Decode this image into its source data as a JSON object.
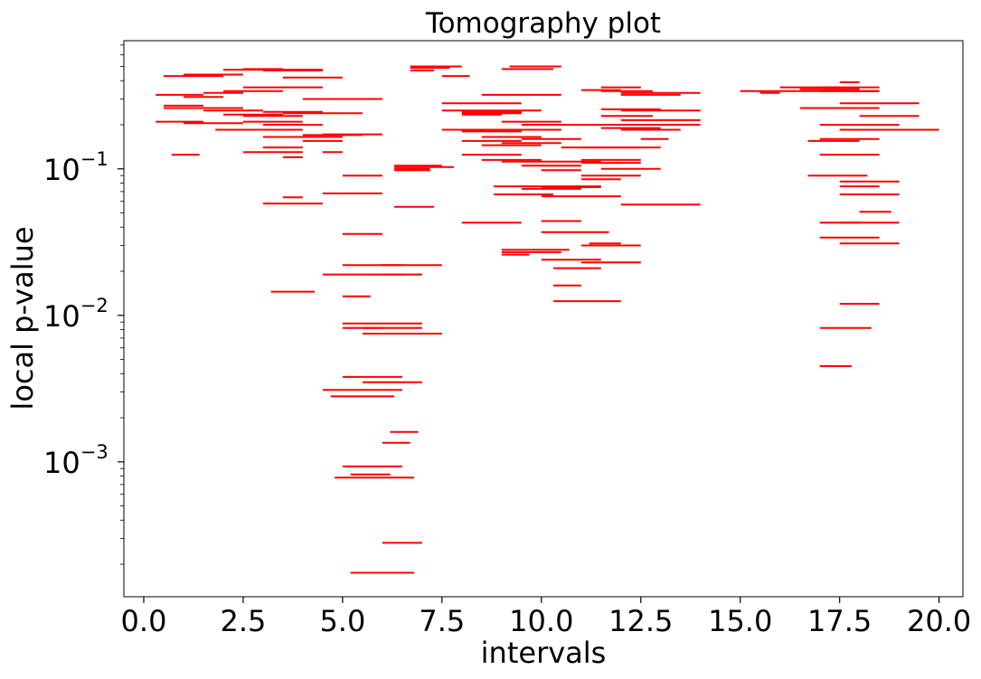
{
  "chart_data": {
    "type": "interval",
    "title": "Tomography plot",
    "xlabel": "intervals",
    "ylabel": "local p-value",
    "xscale": "linear",
    "yscale": "log",
    "xlim": [
      -0.5,
      20.6
    ],
    "ylim": [
      0.00012,
      0.75
    ],
    "grid": false,
    "color": "#ff0000",
    "xticks": [
      0.0,
      2.5,
      5.0,
      7.5,
      10.0,
      12.5,
      15.0,
      17.5,
      20.0
    ],
    "xtick_labels": [
      "0.0",
      "2.5",
      "5.0",
      "7.5",
      "10.0",
      "12.5",
      "15.0",
      "17.5",
      "20.0"
    ],
    "yticks": [
      {
        "value": 0.001,
        "base": "10",
        "exp": "−3"
      },
      {
        "value": 0.01,
        "base": "10",
        "exp": "−2"
      },
      {
        "value": 0.1,
        "base": "10",
        "exp": "−1"
      }
    ],
    "segments": [
      [
        0.5,
        2.0,
        0.43
      ],
      [
        1.0,
        2.5,
        0.44
      ],
      [
        2.0,
        4.5,
        0.475
      ],
      [
        2.5,
        3.5,
        0.48
      ],
      [
        3.0,
        4.5,
        0.47
      ],
      [
        0.3,
        1.5,
        0.32
      ],
      [
        1.0,
        2.0,
        0.31
      ],
      [
        1.5,
        2.5,
        0.33
      ],
      [
        2.0,
        3.5,
        0.34
      ],
      [
        2.5,
        4.5,
        0.36
      ],
      [
        3.5,
        5.0,
        0.42
      ],
      [
        0.5,
        1.5,
        0.27
      ],
      [
        0.5,
        2.5,
        0.26
      ],
      [
        1.5,
        3.0,
        0.25
      ],
      [
        2.0,
        3.5,
        0.235
      ],
      [
        2.5,
        4.0,
        0.23
      ],
      [
        3.0,
        4.5,
        0.245
      ],
      [
        3.5,
        5.5,
        0.24
      ],
      [
        4.0,
        6.0,
        0.3
      ],
      [
        0.3,
        1.5,
        0.21
      ],
      [
        1.0,
        2.5,
        0.205
      ],
      [
        2.5,
        4.0,
        0.21
      ],
      [
        3.0,
        4.5,
        0.2
      ],
      [
        1.8,
        4.0,
        0.185
      ],
      [
        3.0,
        5.0,
        0.165
      ],
      [
        4.0,
        5.5,
        0.17
      ],
      [
        4.5,
        6.0,
        0.172
      ],
      [
        4.0,
        5.0,
        0.155
      ],
      [
        3.0,
        4.0,
        0.14
      ],
      [
        2.5,
        4.0,
        0.13
      ],
      [
        3.5,
        4.0,
        0.12
      ],
      [
        4.5,
        5.0,
        0.13
      ],
      [
        0.7,
        1.4,
        0.125
      ],
      [
        5.0,
        6.0,
        0.09
      ],
      [
        4.5,
        6.0,
        0.068
      ],
      [
        3.5,
        4.0,
        0.064
      ],
      [
        3.0,
        4.5,
        0.058
      ],
      [
        5.0,
        6.0,
        0.036
      ],
      [
        5.0,
        6.5,
        0.022
      ],
      [
        4.5,
        6.5,
        0.019
      ],
      [
        6.0,
        7.5,
        0.022
      ],
      [
        6.0,
        7.0,
        0.019
      ],
      [
        3.2,
        4.3,
        0.0145
      ],
      [
        5.0,
        5.7,
        0.0135
      ],
      [
        5.0,
        7.0,
        0.0088
      ],
      [
        5.5,
        7.0,
        0.0082
      ],
      [
        5.5,
        7.5,
        0.0075
      ],
      [
        5.0,
        6.0,
        0.0082
      ],
      [
        5.0,
        6.5,
        0.0038
      ],
      [
        5.5,
        7.0,
        0.0035
      ],
      [
        4.5,
        6.5,
        0.0031
      ],
      [
        4.7,
        6.3,
        0.0028
      ],
      [
        6.2,
        6.9,
        0.0016
      ],
      [
        6.0,
        6.7,
        0.00135
      ],
      [
        5.0,
        6.5,
        0.00093
      ],
      [
        5.2,
        6.2,
        0.00082
      ],
      [
        4.8,
        6.8,
        0.00078
      ],
      [
        6.0,
        7.0,
        0.00028
      ],
      [
        5.2,
        6.8,
        0.000175
      ],
      [
        6.3,
        7.5,
        0.105
      ],
      [
        6.3,
        7.8,
        0.103
      ],
      [
        6.3,
        7.2,
        0.1
      ],
      [
        6.3,
        7.2,
        0.098
      ],
      [
        6.3,
        7.3,
        0.055
      ],
      [
        6.7,
        8.0,
        0.5
      ],
      [
        6.7,
        7.7,
        0.49
      ],
      [
        6.7,
        7.3,
        0.47
      ],
      [
        7.5,
        8.2,
        0.43
      ],
      [
        7.5,
        9.5,
        0.28
      ],
      [
        7.5,
        10.0,
        0.25
      ],
      [
        8.0,
        9.5,
        0.245
      ],
      [
        8.0,
        9.5,
        0.24
      ],
      [
        8.0,
        9.0,
        0.235
      ],
      [
        7.5,
        9.0,
        0.185
      ],
      [
        8.0,
        9.5,
        0.18
      ],
      [
        9.0,
        10.5,
        0.185
      ],
      [
        9.5,
        11.0,
        0.2
      ],
      [
        9.0,
        10.5,
        0.21
      ],
      [
        8.5,
        10.0,
        0.165
      ],
      [
        8.0,
        9.5,
        0.155
      ],
      [
        9.0,
        10.5,
        0.15
      ],
      [
        8.5,
        10.0,
        0.145
      ],
      [
        9.5,
        11.0,
        0.16
      ],
      [
        8.0,
        9.5,
        0.125
      ],
      [
        8.5,
        10.0,
        0.115
      ],
      [
        9.0,
        11.5,
        0.112
      ],
      [
        9.5,
        11.0,
        0.105
      ],
      [
        10.0,
        11.0,
        0.098
      ],
      [
        8.8,
        11.5,
        0.076
      ],
      [
        8.8,
        10.3,
        0.067
      ],
      [
        9.5,
        11.0,
        0.073
      ],
      [
        10.0,
        12.0,
        0.065
      ],
      [
        10.0,
        11.5,
        0.075
      ],
      [
        8.0,
        9.5,
        0.043
      ],
      [
        10.0,
        11.0,
        0.044
      ],
      [
        10.0,
        11.7,
        0.037
      ],
      [
        9.0,
        10.5,
        0.027
      ],
      [
        9.0,
        9.7,
        0.026
      ],
      [
        9.0,
        10.7,
        0.028
      ],
      [
        10.0,
        11.5,
        0.024
      ],
      [
        10.3,
        11.5,
        0.021
      ],
      [
        10.3,
        11.0,
        0.016
      ],
      [
        10.3,
        12.0,
        0.0125
      ],
      [
        11.2,
        12.0,
        0.031
      ],
      [
        11.0,
        12.5,
        0.03
      ],
      [
        11.0,
        12.5,
        0.023
      ],
      [
        9.2,
        10.5,
        0.5
      ],
      [
        9.0,
        10.3,
        0.48
      ],
      [
        8.5,
        10.5,
        0.32
      ],
      [
        11.5,
        12.5,
        0.36
      ],
      [
        11.5,
        12.8,
        0.34
      ],
      [
        12.0,
        14.0,
        0.33
      ],
      [
        12.0,
        13.5,
        0.32
      ],
      [
        11.0,
        12.0,
        0.345
      ],
      [
        11.5,
        13.0,
        0.255
      ],
      [
        12.0,
        14.0,
        0.25
      ],
      [
        11.5,
        12.8,
        0.23
      ],
      [
        12.0,
        14.0,
        0.215
      ],
      [
        11.0,
        12.5,
        0.2
      ],
      [
        11.5,
        13.0,
        0.19
      ],
      [
        12.5,
        14.0,
        0.2
      ],
      [
        12.0,
        13.5,
        0.185
      ],
      [
        12.5,
        13.2,
        0.16
      ],
      [
        10.5,
        12.5,
        0.14
      ],
      [
        11.0,
        13.0,
        0.14
      ],
      [
        11.0,
        12.5,
        0.115
      ],
      [
        11.0,
        12.5,
        0.11
      ],
      [
        11.5,
        13.0,
        0.1
      ],
      [
        11.0,
        12.5,
        0.09
      ],
      [
        12.0,
        14.0,
        0.057
      ],
      [
        11.0,
        12.0,
        0.085
      ],
      [
        11.5,
        12.0,
        0.11
      ],
      [
        15.0,
        16.5,
        0.34
      ],
      [
        15.5,
        16.0,
        0.33
      ],
      [
        16.0,
        17.5,
        0.36
      ],
      [
        16.5,
        18.0,
        0.35
      ],
      [
        17.0,
        18.5,
        0.36
      ],
      [
        17.5,
        18.0,
        0.39
      ],
      [
        17.0,
        18.5,
        0.34
      ],
      [
        16.5,
        18.5,
        0.34
      ],
      [
        16.5,
        18.5,
        0.26
      ],
      [
        17.5,
        19.5,
        0.28
      ],
      [
        18.0,
        19.5,
        0.23
      ],
      [
        17.0,
        19.0,
        0.2
      ],
      [
        17.5,
        20.0,
        0.185
      ],
      [
        16.7,
        18.0,
        0.155
      ],
      [
        17.0,
        18.5,
        0.16
      ],
      [
        17.0,
        18.5,
        0.125
      ],
      [
        16.7,
        18.2,
        0.09
      ],
      [
        17.5,
        19.0,
        0.082
      ],
      [
        17.5,
        18.5,
        0.076
      ],
      [
        17.5,
        19.0,
        0.067
      ],
      [
        18.0,
        18.8,
        0.051
      ],
      [
        17.5,
        19.0,
        0.043
      ],
      [
        17.0,
        18.5,
        0.034
      ],
      [
        17.5,
        19.0,
        0.031
      ],
      [
        17.0,
        18.0,
        0.043
      ],
      [
        17.5,
        18.5,
        0.012
      ],
      [
        17.0,
        18.3,
        0.0082
      ],
      [
        17.0,
        17.8,
        0.0045
      ]
    ]
  }
}
